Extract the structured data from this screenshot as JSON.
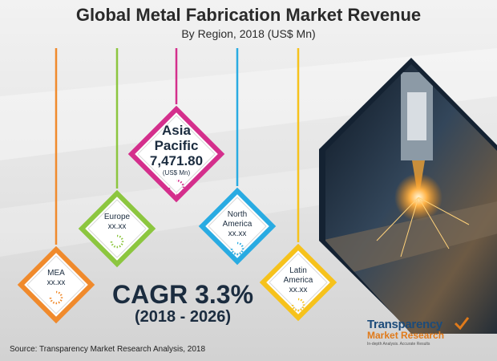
{
  "title": "Global Metal Fabrication Market Revenue",
  "subtitle": "By Region, 2018 (US$ Mn)",
  "chart_data": {
    "type": "infographic",
    "title": "Global Metal Fabrication Market Revenue",
    "subtitle": "By Region, 2018 (US$ Mn)",
    "categories": [
      "MEA",
      "Europe",
      "Asia Pacific",
      "North America",
      "Latin America"
    ],
    "values": [
      "xx.xx",
      "xx.xx",
      7471.8,
      "xx.xx",
      "xx.xx"
    ],
    "value_labels": [
      "xx.xx",
      "xx.xx",
      "7,471.80",
      "xx.xx",
      "xx.xx"
    ],
    "unit": "(US$ Mn)",
    "markers": [
      {
        "name_lines": [
          "MEA"
        ],
        "value": "xx.xx",
        "color": "#f08a2c"
      },
      {
        "name_lines": [
          "Europe"
        ],
        "value": "xx.xx",
        "color": "#8cc63f"
      },
      {
        "name_lines": [
          "Asia",
          "Pacific"
        ],
        "value": "7,471.80",
        "unit": "(US$ Mn)",
        "color": "#d42f8c"
      },
      {
        "name_lines": [
          "North",
          "America"
        ],
        "value": "xx.xx",
        "color": "#29abe2"
      },
      {
        "name_lines": [
          "Latin",
          "America"
        ],
        "value": "xx.xx",
        "color": "#f6c21c"
      }
    ]
  },
  "cagr": {
    "label": "CAGR 3.3%",
    "period": "(2018 - 2026)"
  },
  "source": "Source: Transparency Market Research Analysis, 2018",
  "logo": {
    "line1": "Transparency",
    "line2": "Market Research",
    "tagline": "In-depth Analysis. Accurate Results"
  },
  "colors": {
    "title": "#2a2a2a",
    "cagr": "#1b2c3f",
    "photo_frame": "#1a2836"
  }
}
